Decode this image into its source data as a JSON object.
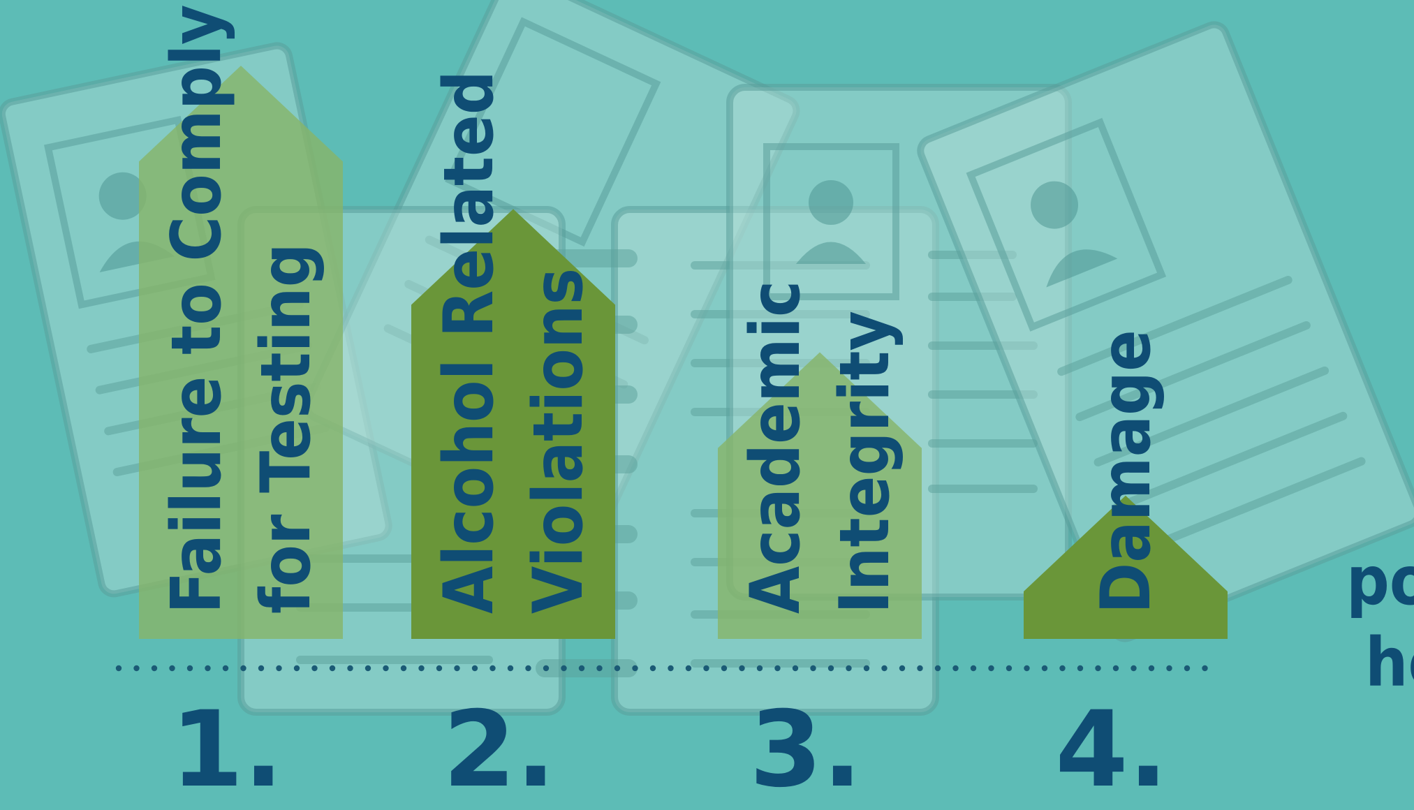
{
  "chart_data": {
    "type": "bar",
    "categories": [
      "Failure to Comply for Testing",
      "Alcohol Related Violations",
      "Academic Integrity",
      "Damage"
    ],
    "ranks": [
      "1.",
      "2.",
      "3.",
      "4."
    ],
    "values": [
      4,
      3,
      2,
      1
    ],
    "ylim": [
      0,
      4.4
    ],
    "colors": [
      "#86b46a",
      "#6a9639",
      "#86b46a",
      "#6a9639"
    ]
  },
  "side_text": [
    "po",
    "he"
  ],
  "colors": {
    "background": "#5dbcb6",
    "label": "#0f4d74",
    "arrow_dark": "#6a9639",
    "arrow_light": "#86b46a"
  }
}
